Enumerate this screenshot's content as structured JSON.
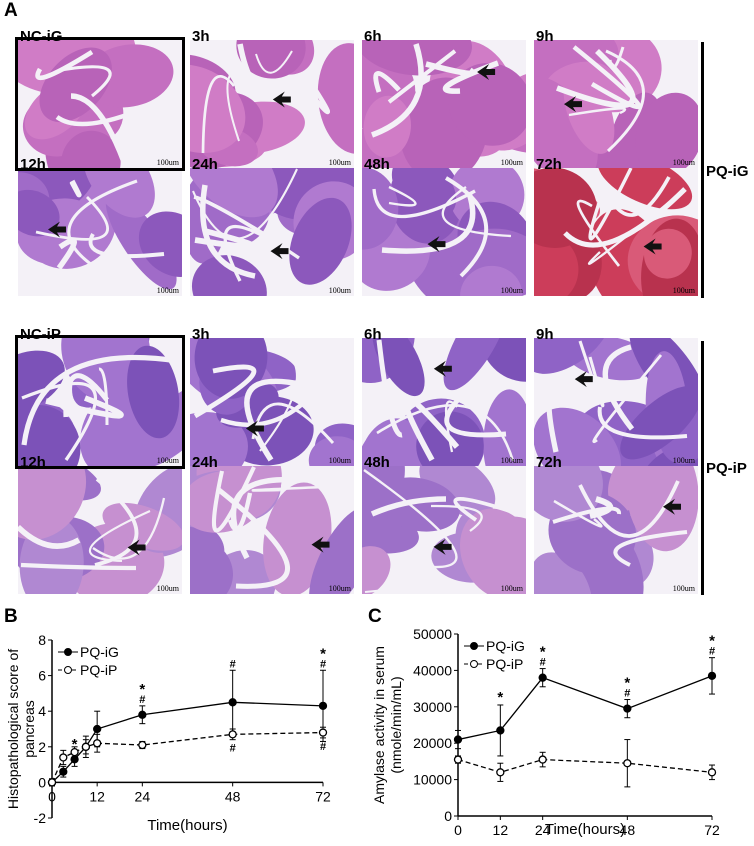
{
  "figure": {
    "panel_a_label": "A",
    "panel_b_label": "B",
    "panel_c_label": "C",
    "group_top": "PQ-iG",
    "group_bottom": "PQ-iP",
    "scale_bar": "100um",
    "top_tiles": [
      "NC-iG",
      "3h",
      "6h",
      "9h",
      "12h",
      "24h",
      "48h",
      "72h"
    ],
    "bottom_tiles": [
      "NC-iP",
      "3h",
      "6h",
      "9h",
      "12h",
      "24h",
      "48h",
      "72h"
    ],
    "tissue_colors": {
      "pink": "#d880c0",
      "purple": "#8a5fc0",
      "red": "#d6405a",
      "white": "#f4f1f7"
    }
  },
  "chart_data": [
    {
      "type": "line",
      "ylabel": "Histopathological score of pancreas",
      "xlabel": "Time(hours)",
      "xlim": [
        0,
        72
      ],
      "ylim": [
        -2,
        8
      ],
      "xticks": [
        0,
        12,
        24,
        48,
        72
      ],
      "yticks": [
        -2,
        0,
        2,
        4,
        6,
        8
      ],
      "legend_position": "top-left",
      "series": [
        {
          "name": "PQ-iG",
          "style": "solid",
          "marker": "filled",
          "x": [
            0,
            3,
            6,
            9,
            12,
            24,
            48,
            72
          ],
          "y": [
            0,
            0.6,
            1.3,
            2.0,
            3.0,
            3.8,
            4.5,
            4.3
          ],
          "err": [
            0.2,
            0.3,
            0.4,
            0.6,
            1.0,
            0.5,
            1.8,
            2.0
          ],
          "annotations": [
            "",
            "*",
            "*",
            "",
            "",
            "*#",
            "#",
            "*#"
          ]
        },
        {
          "name": "PQ-iP",
          "style": "dashed",
          "marker": "open",
          "x": [
            0,
            3,
            6,
            9,
            12,
            24,
            48,
            72
          ],
          "y": [
            0,
            1.4,
            1.7,
            2.0,
            2.2,
            2.1,
            2.7,
            2.8
          ],
          "err": [
            0.2,
            0.4,
            0.3,
            0.4,
            0.5,
            0.2,
            0.3,
            0.3
          ],
          "annotations": [
            "",
            "",
            "",
            "",
            "",
            "",
            "#",
            "#"
          ]
        }
      ]
    },
    {
      "type": "line",
      "ylabel": "Amylase activity in serum (nmole/min/mL)",
      "xlabel": "Time(hours)",
      "xlim": [
        0,
        72
      ],
      "ylim": [
        0,
        50000
      ],
      "xticks": [
        0,
        12,
        24,
        48,
        72
      ],
      "yticks": [
        0,
        10000,
        20000,
        30000,
        40000,
        50000
      ],
      "legend_position": "top-left",
      "series": [
        {
          "name": "PQ-iG",
          "style": "solid",
          "marker": "filled",
          "x": [
            0,
            12,
            24,
            48,
            72
          ],
          "y": [
            21000,
            23500,
            38000,
            29500,
            38500
          ],
          "err": [
            2500,
            7000,
            2500,
            2500,
            5000
          ],
          "annotations": [
            "",
            "*",
            "*#",
            "*#",
            "*#"
          ]
        },
        {
          "name": "PQ-iP",
          "style": "dashed",
          "marker": "open",
          "x": [
            0,
            12,
            24,
            48,
            72
          ],
          "y": [
            15500,
            12000,
            15500,
            14500,
            12000
          ],
          "err": [
            1000,
            2500,
            2000,
            6500,
            2000
          ],
          "annotations": [
            "",
            "",
            "",
            "",
            ""
          ]
        }
      ]
    }
  ]
}
